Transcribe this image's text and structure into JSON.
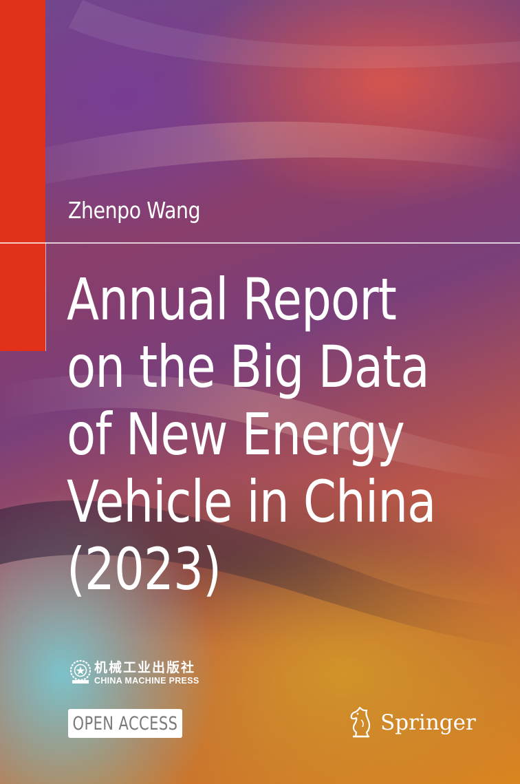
{
  "cover": {
    "author": "Zhenpo Wang",
    "title_lines": [
      "Annual Report",
      "on the Big Data",
      "of New Energy",
      "Vehicle in China",
      "(2023)"
    ]
  },
  "publisher": {
    "name_cn": "机械工业出版社",
    "name_en": "CHINA MACHINE PRESS",
    "emblem_icon": "china-machine-press-emblem"
  },
  "badges": {
    "open_access": "OPEN ACCESS"
  },
  "imprint": {
    "name": "Springer",
    "logo_icon": "springer-horse-icon"
  },
  "colors": {
    "accent_bar": "#e1311b",
    "text": "#ffffff",
    "open_access_text": "#7a7a7a"
  }
}
